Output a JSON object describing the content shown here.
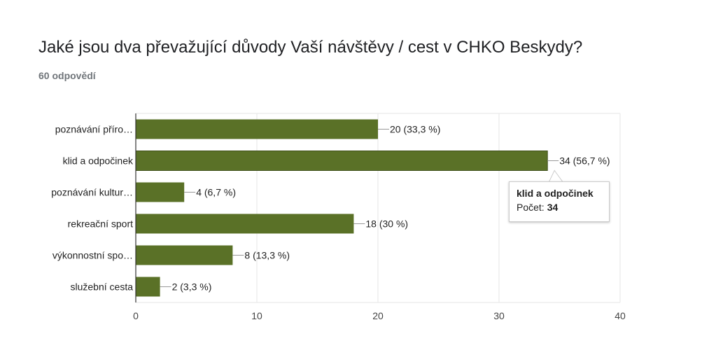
{
  "title": "Jaké jsou dva převažující důvody Vaší návštěvy / cest v CHKO Beskydy?",
  "subtitle": "60 odpovědí",
  "colors": {
    "bar": "#5a7127",
    "grid": "#e6e6e6",
    "axis": "#333333"
  },
  "chart_data": {
    "type": "bar",
    "orientation": "horizontal",
    "title": "Jaké jsou dva převažující důvody Vaší návštěvy / cest v CHKO Beskydy?",
    "categories": [
      "poznávání příro…",
      "klid a odpočinek",
      "poznávání kultur…",
      "rekreační sport",
      "výkonnostní spo…",
      "služební cesta"
    ],
    "values": [
      20,
      34,
      4,
      18,
      8,
      2
    ],
    "value_labels": [
      "20 (33,3 %)",
      "34 (56,7 %)",
      "4 (6,7 %)",
      "18 (30 %)",
      "8 (13,3 %)",
      "2 (3,3 %)"
    ],
    "xlim": [
      0,
      40
    ],
    "xticks": [
      "0",
      "10",
      "20",
      "30",
      "40"
    ],
    "grid": true
  },
  "tooltip": {
    "title": "klid a odpočinek",
    "label": "Počet:",
    "value": "34"
  }
}
